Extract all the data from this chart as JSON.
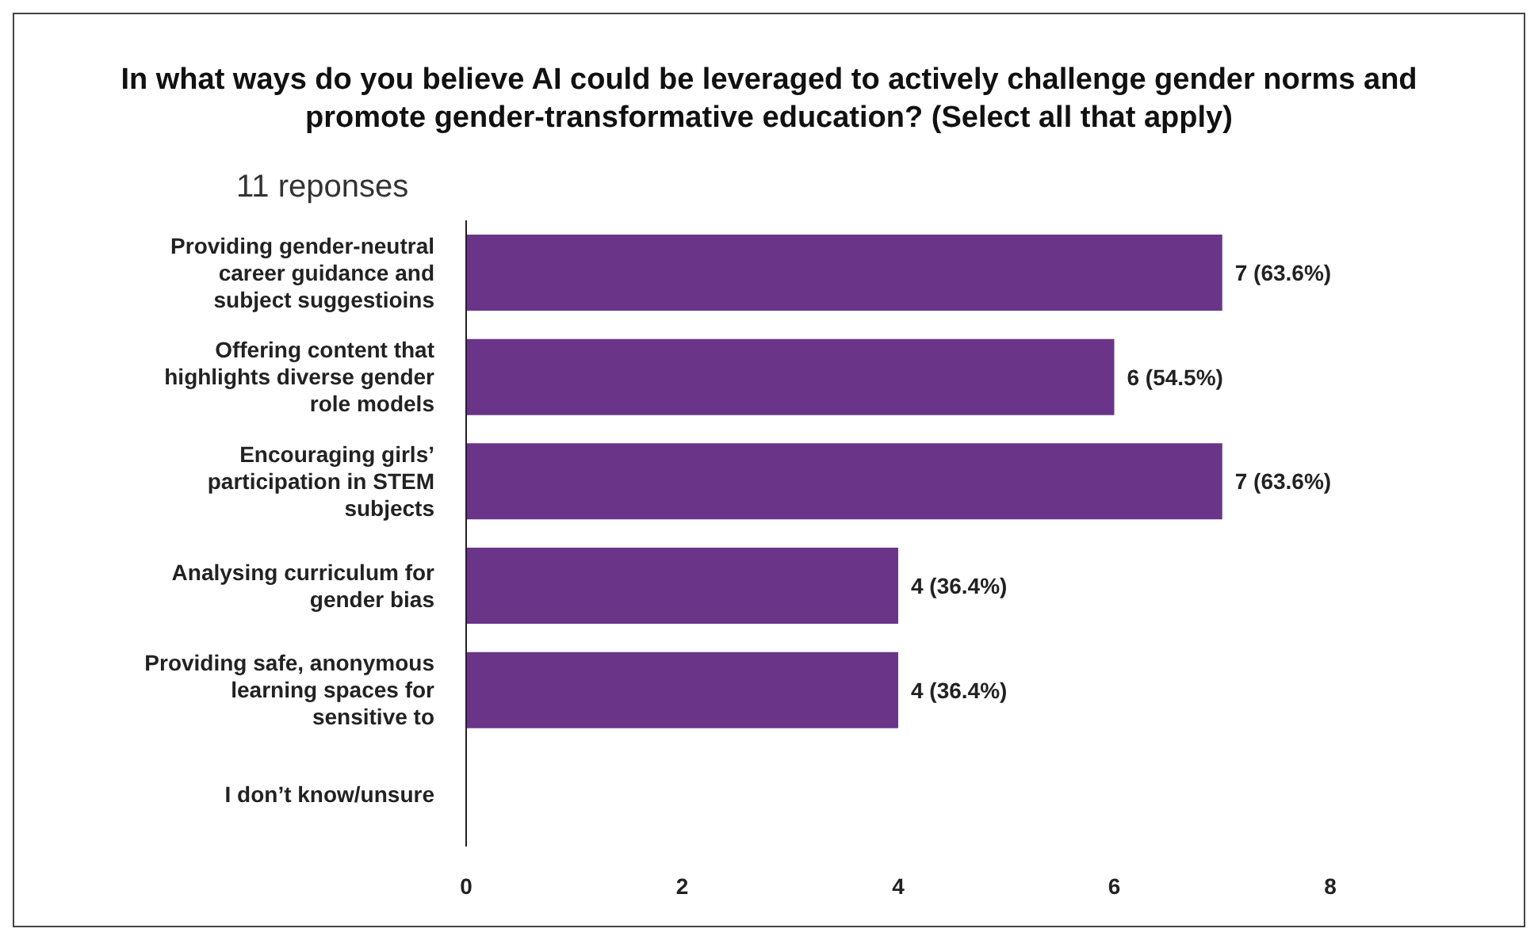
{
  "chart_data": {
    "type": "bar",
    "orientation": "horizontal",
    "title": "In what ways do you believe AI could be leveraged to actively challenge gender norms and promote gender-transformative education? (Select all that apply)",
    "subtitle": "11 reponses",
    "categories": [
      "Providing gender-neutral career guidance and subject suggestioins",
      "Offering content that highlights diverse gender role models",
      "Encouraging girls’ participation in STEM subjects",
      "Analysing curriculum for gender bias",
      "Providing safe, anonymous learning spaces for sensitive to",
      "I don’t know/unsure"
    ],
    "values": [
      7,
      6,
      7,
      4,
      4,
      0
    ],
    "value_labels": [
      "7 (63.6%)",
      "6 (54.5%)",
      "7 (63.6%)",
      "4 (36.4%)",
      "4 (36.4%)",
      null
    ],
    "color": "#6a3589",
    "xlim": [
      0,
      8
    ],
    "xticks": [
      0,
      2,
      4,
      6,
      8
    ],
    "grid": false
  }
}
